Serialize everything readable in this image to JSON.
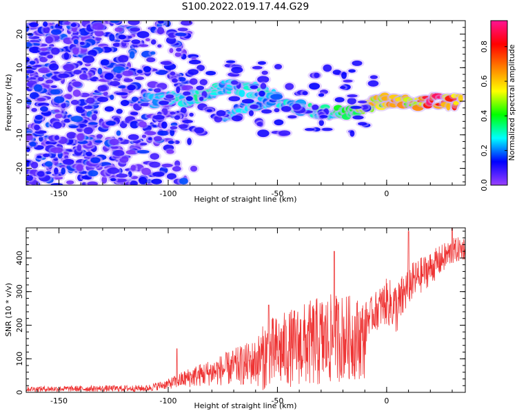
{
  "title": "S100.2022.019.17.44.G29",
  "chart_data": [
    {
      "type": "heatmap",
      "xlabel": "Height of straight line (km)",
      "ylabel": "Frequency (Hz)",
      "xlim": [
        -165,
        36
      ],
      "ylim": [
        -25,
        24
      ],
      "x_ticks": [
        -150,
        -100,
        -50,
        0
      ],
      "y_ticks": [
        -20,
        -10,
        0,
        10,
        20
      ],
      "colorbar": {
        "label": "Normalized spectral amplitude",
        "range": [
          0,
          0.95
        ],
        "ticks": [
          0.0,
          0.2,
          0.4,
          0.6,
          0.8
        ],
        "colormap": [
          "#9a40ff",
          "#0000ff",
          "#00ffff",
          "#00ff00",
          "#ffff00",
          "#ff8000",
          "#ff0000",
          "#ff1493"
        ]
      },
      "ridge": [
        {
          "x": -110,
          "y": 0.0,
          "amp": 0.22
        },
        {
          "x": -95,
          "y": 0.5,
          "amp": 0.3
        },
        {
          "x": -82,
          "y": 2.5,
          "amp": 0.3
        },
        {
          "x": -72,
          "y": 4.5,
          "amp": 0.25
        },
        {
          "x": -57,
          "y": 3.0,
          "amp": 0.28
        },
        {
          "x": -45,
          "y": -1.5,
          "amp": 0.25
        },
        {
          "x": -30,
          "y": -3.5,
          "amp": 0.3
        },
        {
          "x": -18,
          "y": -3.0,
          "amp": 0.35
        },
        {
          "x": -10,
          "y": -1.0,
          "amp": 0.5
        },
        {
          "x": 0,
          "y": 0.0,
          "amp": 0.6
        },
        {
          "x": 10,
          "y": -0.5,
          "amp": 0.55
        },
        {
          "x": 22,
          "y": 0.0,
          "amp": 0.85
        },
        {
          "x": 34,
          "y": 0.0,
          "amp": 0.6
        }
      ],
      "ridge2": [
        {
          "x": -74,
          "y": -4.0,
          "amp": 0.22
        },
        {
          "x": -60,
          "y": -1.0,
          "amp": 0.25
        },
        {
          "x": -50,
          "y": 1.0,
          "amp": 0.2
        }
      ],
      "noise_region": {
        "x_range": [
          -165,
          -100
        ],
        "amp": 0.15
      }
    },
    {
      "type": "line",
      "xlabel": "Height of straight line (km)",
      "ylabel": "SNR (10 * v/v)",
      "xlim": [
        -165,
        36
      ],
      "ylim": [
        0,
        490
      ],
      "x_ticks": [
        -150,
        -100,
        -50,
        0
      ],
      "y_ticks": [
        0,
        100,
        200,
        300,
        400
      ],
      "color": "#ee3333",
      "envelope": [
        {
          "x": -165,
          "base": 10,
          "spread": 8
        },
        {
          "x": -110,
          "base": 12,
          "spread": 10
        },
        {
          "x": -100,
          "base": 25,
          "spread": 15
        },
        {
          "x": -90,
          "base": 45,
          "spread": 30
        },
        {
          "x": -80,
          "base": 60,
          "spread": 40
        },
        {
          "x": -70,
          "base": 75,
          "spread": 55
        },
        {
          "x": -60,
          "base": 90,
          "spread": 70
        },
        {
          "x": -55,
          "base": 110,
          "spread": 110
        },
        {
          "x": -50,
          "base": 120,
          "spread": 110
        },
        {
          "x": -40,
          "base": 140,
          "spread": 120
        },
        {
          "x": -30,
          "base": 150,
          "spread": 140
        },
        {
          "x": -20,
          "base": 165,
          "spread": 130
        },
        {
          "x": -10,
          "base": 160,
          "spread": 120
        },
        {
          "x": -9,
          "base": 220,
          "spread": 50
        },
        {
          "x": 0,
          "base": 270,
          "spread": 70
        },
        {
          "x": 5,
          "base": 250,
          "spread": 80
        },
        {
          "x": 10,
          "base": 320,
          "spread": 60
        },
        {
          "x": 20,
          "base": 370,
          "spread": 50
        },
        {
          "x": 30,
          "base": 420,
          "spread": 40
        },
        {
          "x": 36,
          "base": 430,
          "spread": 35
        }
      ],
      "peaks": [
        {
          "x": -96,
          "y": 130
        },
        {
          "x": -54,
          "y": 260
        },
        {
          "x": -24,
          "y": 420
        },
        {
          "x": 10,
          "y": 480
        },
        {
          "x": 30,
          "y": 490
        }
      ]
    }
  ]
}
